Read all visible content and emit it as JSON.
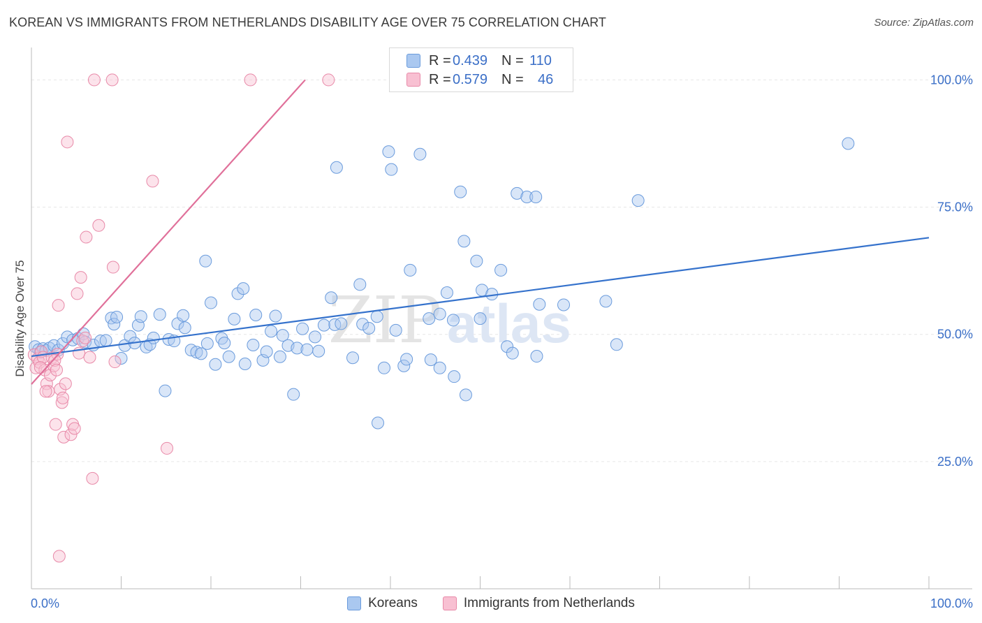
{
  "title": "KOREAN VS IMMIGRANTS FROM NETHERLANDS DISABILITY AGE OVER 75 CORRELATION CHART",
  "source": "Source: ZipAtlas.com",
  "watermark": {
    "zip": "ZIP",
    "atlas": "atlas"
  },
  "legend": {
    "rows": [
      {
        "r_label": "R =",
        "r_value": "0.439",
        "n_label": "N =",
        "n_value": "110",
        "fill": "#aac8f0",
        "stroke": "#6a9bdc"
      },
      {
        "r_label": "R =",
        "r_value": "0.579",
        "n_label": "N =",
        "n_value": "46",
        "fill": "#f8c0d2",
        "stroke": "#e889a8"
      }
    ]
  },
  "bottom_legend": [
    {
      "label": "Koreans",
      "fill": "#aac8f0",
      "stroke": "#6a9bdc"
    },
    {
      "label": "Immigrants from Netherlands",
      "fill": "#f8c0d2",
      "stroke": "#e889a8"
    }
  ],
  "chart_data": {
    "type": "scatter",
    "ylabel": "Disability Age Over 75",
    "xlim": [
      0,
      100
    ],
    "ylim": [
      0,
      105
    ],
    "x_tick_labels": [
      {
        "value": 0,
        "label": "0.0%"
      },
      {
        "value": 100,
        "label": "100.0%"
      }
    ],
    "y_tick_labels": [
      {
        "value": 25,
        "label": "25.0%"
      },
      {
        "value": 50,
        "label": "50.0%"
      },
      {
        "value": 75,
        "label": "75.0%"
      },
      {
        "value": 100,
        "label": "100.0%"
      }
    ],
    "x_minor_ticks": [
      0,
      10,
      20,
      30,
      40,
      50,
      60,
      70,
      80,
      90,
      100
    ],
    "grid": true,
    "series": [
      {
        "name": "Koreans",
        "color": "#6a9bdc",
        "fill": "rgba(170,200,240,0.45)",
        "trend": {
          "x": [
            0,
            100
          ],
          "y": [
            45.7,
            69.0
          ]
        },
        "points": [
          [
            0.4,
            47.6
          ],
          [
            0.8,
            47.0
          ],
          [
            1.0,
            46.5
          ],
          [
            1.3,
            47.2
          ],
          [
            1.6,
            46.8
          ],
          [
            2.0,
            47.3
          ],
          [
            2.5,
            47.8
          ],
          [
            3.0,
            46.9
          ],
          [
            3.5,
            48.2
          ],
          [
            4.0,
            49.5
          ],
          [
            4.6,
            48.9
          ],
          [
            5.2,
            49.2
          ],
          [
            5.8,
            50.1
          ],
          [
            6.0,
            48.5
          ],
          [
            6.9,
            47.9
          ],
          [
            7.7,
            48.7
          ],
          [
            8.3,
            48.8
          ],
          [
            8.9,
            53.2
          ],
          [
            9.2,
            52.0
          ],
          [
            9.5,
            53.4
          ],
          [
            10.0,
            45.3
          ],
          [
            10.4,
            47.8
          ],
          [
            11.0,
            49.6
          ],
          [
            11.5,
            48.3
          ],
          [
            11.9,
            51.8
          ],
          [
            12.2,
            53.5
          ],
          [
            12.8,
            47.5
          ],
          [
            13.2,
            48.0
          ],
          [
            13.6,
            49.3
          ],
          [
            14.3,
            53.9
          ],
          [
            14.9,
            38.9
          ],
          [
            15.3,
            49.0
          ],
          [
            15.9,
            48.7
          ],
          [
            16.3,
            52.1
          ],
          [
            16.9,
            53.7
          ],
          [
            17.1,
            51.3
          ],
          [
            17.8,
            46.9
          ],
          [
            18.4,
            46.5
          ],
          [
            18.9,
            46.2
          ],
          [
            19.4,
            64.4
          ],
          [
            19.6,
            48.2
          ],
          [
            20.0,
            56.2
          ],
          [
            20.5,
            44.1
          ],
          [
            21.2,
            49.2
          ],
          [
            21.5,
            48.3
          ],
          [
            22.0,
            45.6
          ],
          [
            22.6,
            53.0
          ],
          [
            23.0,
            58.0
          ],
          [
            23.6,
            59.0
          ],
          [
            23.8,
            44.2
          ],
          [
            24.7,
            47.9
          ],
          [
            25.0,
            53.8
          ],
          [
            25.8,
            44.9
          ],
          [
            26.2,
            46.6
          ],
          [
            26.7,
            50.6
          ],
          [
            27.2,
            53.6
          ],
          [
            27.7,
            45.6
          ],
          [
            28.0,
            49.8
          ],
          [
            28.6,
            47.8
          ],
          [
            29.2,
            38.2
          ],
          [
            29.6,
            47.3
          ],
          [
            30.2,
            51.1
          ],
          [
            30.7,
            47.0
          ],
          [
            31.6,
            49.5
          ],
          [
            32.0,
            46.7
          ],
          [
            32.6,
            51.8
          ],
          [
            33.4,
            57.2
          ],
          [
            33.8,
            51.9
          ],
          [
            34.0,
            82.8
          ],
          [
            34.5,
            52.1
          ],
          [
            35.8,
            45.4
          ],
          [
            36.6,
            59.8
          ],
          [
            36.9,
            52.0
          ],
          [
            37.6,
            51.2
          ],
          [
            38.5,
            53.5
          ],
          [
            38.6,
            32.6
          ],
          [
            39.3,
            43.4
          ],
          [
            39.8,
            85.9
          ],
          [
            40.1,
            82.4
          ],
          [
            40.6,
            50.8
          ],
          [
            41.5,
            43.8
          ],
          [
            42.2,
            62.6
          ],
          [
            41.8,
            45.1
          ],
          [
            43.3,
            85.4
          ],
          [
            44.3,
            53.1
          ],
          [
            44.5,
            45.0
          ],
          [
            45.5,
            43.4
          ],
          [
            45.5,
            54.0
          ],
          [
            46.3,
            58.2
          ],
          [
            47.0,
            52.8
          ],
          [
            47.1,
            41.7
          ],
          [
            47.8,
            78.0
          ],
          [
            48.2,
            68.3
          ],
          [
            48.4,
            38.1
          ],
          [
            49.6,
            64.4
          ],
          [
            50.0,
            53.1
          ],
          [
            50.2,
            58.7
          ],
          [
            51.3,
            57.9
          ],
          [
            52.3,
            62.6
          ],
          [
            53.0,
            47.6
          ],
          [
            53.6,
            46.3
          ],
          [
            54.1,
            77.7
          ],
          [
            55.2,
            77.0
          ],
          [
            56.2,
            77.0
          ],
          [
            56.3,
            45.7
          ],
          [
            56.6,
            55.9
          ],
          [
            59.3,
            55.8
          ],
          [
            64.0,
            56.5
          ],
          [
            65.2,
            48.0
          ],
          [
            67.6,
            76.3
          ],
          [
            91.0,
            87.5
          ]
        ]
      },
      {
        "name": "Immigrants from Netherlands",
        "color": "#e889a8",
        "fill": "rgba(248,192,210,0.45)",
        "trend": {
          "x": [
            0,
            30.5
          ],
          "y": [
            40.2,
            100.0
          ]
        },
        "points": [
          [
            0.3,
            46.0
          ],
          [
            0.5,
            43.4
          ],
          [
            0.7,
            45.2
          ],
          [
            0.9,
            44.5
          ],
          [
            1.1,
            46.6
          ],
          [
            1.3,
            45.5
          ],
          [
            1.5,
            43.0
          ],
          [
            1.7,
            40.3
          ],
          [
            1.9,
            38.8
          ],
          [
            2.1,
            42.0
          ],
          [
            2.3,
            45.4
          ],
          [
            2.5,
            43.8
          ],
          [
            2.7,
            32.3
          ],
          [
            2.9,
            46.1
          ],
          [
            3.0,
            55.7
          ],
          [
            3.2,
            39.2
          ],
          [
            3.4,
            36.6
          ],
          [
            3.6,
            29.8
          ],
          [
            3.8,
            40.3
          ],
          [
            4.0,
            87.8
          ],
          [
            4.4,
            30.3
          ],
          [
            4.6,
            32.3
          ],
          [
            4.8,
            31.5
          ],
          [
            5.1,
            58.0
          ],
          [
            5.3,
            46.3
          ],
          [
            5.5,
            61.2
          ],
          [
            5.7,
            48.7
          ],
          [
            6.0,
            49.3
          ],
          [
            6.1,
            69.1
          ],
          [
            6.5,
            45.5
          ],
          [
            6.8,
            21.7
          ],
          [
            7.0,
            100.0
          ],
          [
            7.5,
            71.4
          ],
          [
            9.0,
            100.0
          ],
          [
            9.1,
            63.2
          ],
          [
            9.3,
            44.6
          ],
          [
            13.5,
            80.1
          ],
          [
            15.1,
            27.6
          ],
          [
            24.4,
            100.0
          ],
          [
            33.1,
            100.0
          ],
          [
            3.1,
            6.4
          ],
          [
            1.0,
            43.5
          ],
          [
            1.6,
            38.8
          ],
          [
            2.6,
            44.9
          ],
          [
            2.8,
            43.0
          ],
          [
            3.5,
            37.5
          ]
        ]
      }
    ]
  }
}
